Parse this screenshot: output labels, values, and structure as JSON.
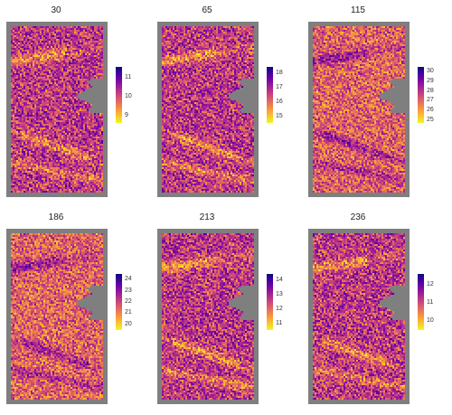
{
  "palette": [
    "#0d0887",
    "#6a00a8",
    "#b12a90",
    "#e16462",
    "#fca636",
    "#f0f921"
  ],
  "frame_color": "#7f7f7f",
  "chart_data": [
    {
      "type": "heatmap",
      "title": "30",
      "colorbar": {
        "ticks": [
          11,
          10,
          9
        ],
        "range": [
          8.6,
          11.6
        ]
      }
    },
    {
      "type": "heatmap",
      "title": "65",
      "colorbar": {
        "ticks": [
          18,
          17,
          16,
          15
        ],
        "range": [
          14.6,
          18.4
        ]
      }
    },
    {
      "type": "heatmap",
      "title": "115",
      "colorbar": {
        "ticks": [
          30,
          29,
          28,
          27,
          26,
          25
        ],
        "range": [
          24.7,
          30.5
        ]
      }
    },
    {
      "type": "heatmap",
      "title": "186",
      "colorbar": {
        "ticks": [
          24,
          23,
          22,
          21,
          20
        ],
        "range": [
          19.5,
          24.5
        ]
      }
    },
    {
      "type": "heatmap",
      "title": "213",
      "colorbar": {
        "ticks": [
          14,
          13,
          12,
          11
        ],
        "range": [
          10.6,
          14.4
        ]
      }
    },
    {
      "type": "heatmap",
      "title": "236",
      "colorbar": {
        "ticks": [
          12,
          11,
          10
        ],
        "range": [
          9.5,
          12.6
        ]
      }
    }
  ]
}
